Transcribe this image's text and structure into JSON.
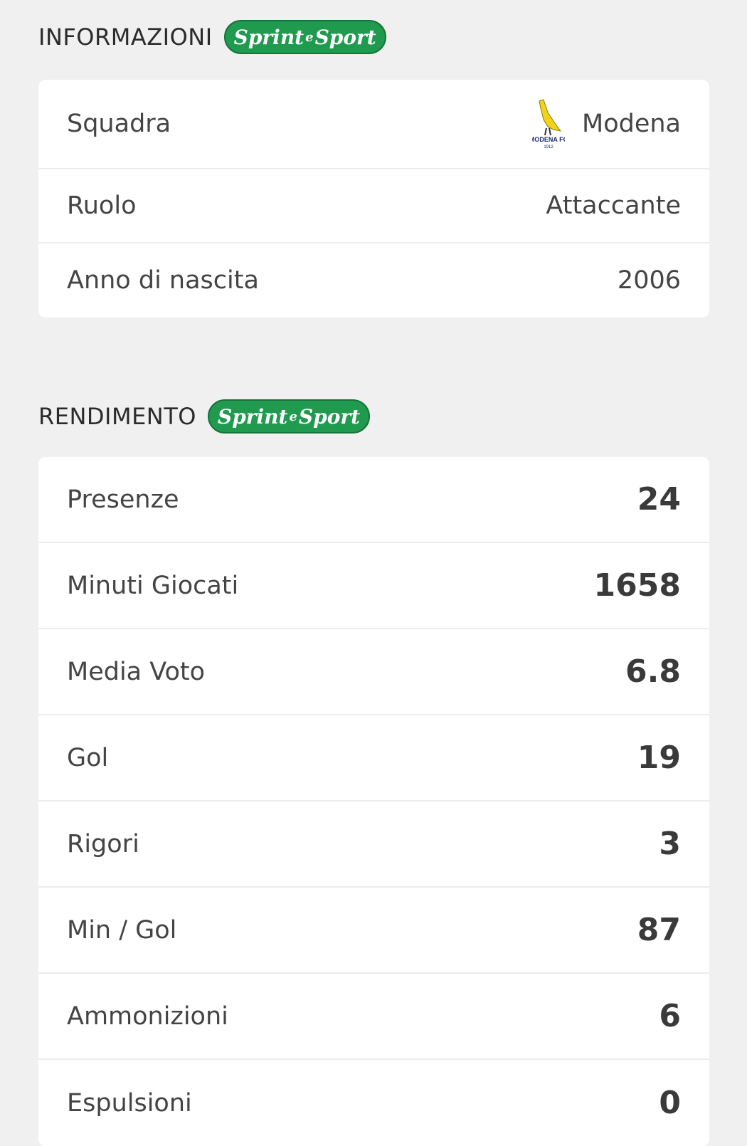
{
  "info": {
    "title": "INFORMAZIONI",
    "badge": {
      "brand_left": "Sprint",
      "brand_mid": "e",
      "brand_right": "Sport",
      "color": "#1f9a4e"
    },
    "rows": [
      {
        "label": "Squadra",
        "value": "Modena",
        "logo_text": "MODENA FC",
        "logo_year": "1912"
      },
      {
        "label": "Ruolo",
        "value": "Attaccante"
      },
      {
        "label": "Anno di nascita",
        "value": "2006"
      }
    ]
  },
  "performance": {
    "title": "RENDIMENTO",
    "badge": {
      "brand_left": "Sprint",
      "brand_mid": "e",
      "brand_right": "Sport",
      "color": "#1f9a4e"
    },
    "rows": [
      {
        "label": "Presenze",
        "value": "24"
      },
      {
        "label": "Minuti Giocati",
        "value": "1658"
      },
      {
        "label": "Media Voto",
        "value": "6.8"
      },
      {
        "label": "Gol",
        "value": "19"
      },
      {
        "label": "Rigori",
        "value": "3"
      },
      {
        "label": "Min / Gol",
        "value": "87"
      },
      {
        "label": "Ammonizioni",
        "value": "6"
      },
      {
        "label": "Espulsioni",
        "value": "0"
      }
    ]
  }
}
